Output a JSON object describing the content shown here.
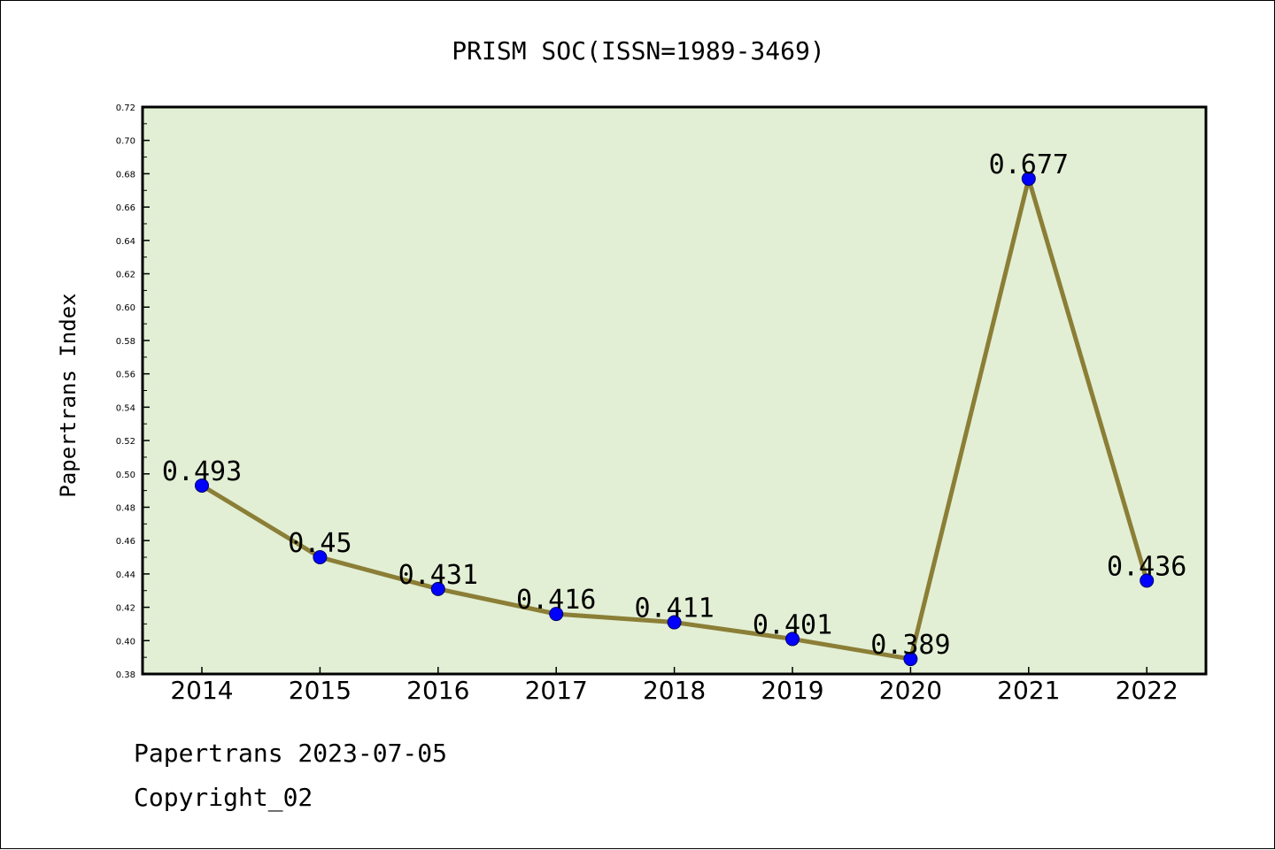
{
  "chart_data": {
    "type": "line",
    "title": "PRISM SOC(ISSN=1989-3469)",
    "xlabel": "",
    "ylabel": "Papertrans Index",
    "categories": [
      "2014",
      "2015",
      "2016",
      "2017",
      "2018",
      "2019",
      "2020",
      "2021",
      "2022"
    ],
    "values": [
      0.493,
      0.45,
      0.431,
      0.416,
      0.411,
      0.401,
      0.389,
      0.677,
      0.436
    ],
    "data_labels": [
      "0.493",
      "0.45",
      "0.431",
      "0.416",
      "0.411",
      "0.401",
      "0.389",
      "0.677",
      "0.436"
    ],
    "ylim": [
      0.38,
      0.72
    ],
    "yticks": [
      "0.38",
      "0.40",
      "0.42",
      "0.44",
      "0.46",
      "0.48",
      "0.50",
      "0.52",
      "0.54",
      "0.56",
      "0.58",
      "0.60",
      "0.62",
      "0.64",
      "0.66",
      "0.68",
      "0.70",
      "0.72"
    ],
    "grid": false,
    "legend": "none",
    "colors": {
      "plot_background": "#e2efd4",
      "line": "#8b7e36",
      "marker": "#0000ff",
      "marker_edge": "#00006b"
    }
  },
  "footer": {
    "line1": "Papertrans 2023-07-05",
    "line2": "Copyright_02"
  }
}
